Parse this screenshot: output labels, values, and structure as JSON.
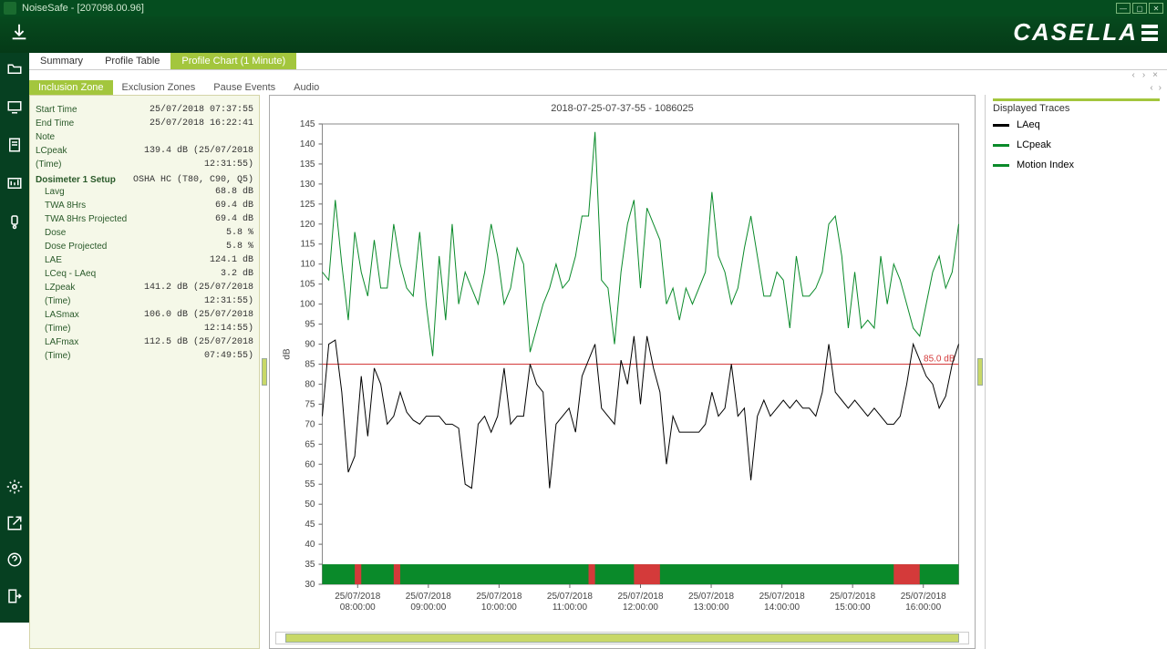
{
  "window": {
    "title": "NoiseSafe - [207098.00.96]"
  },
  "brand": "CASELLA",
  "tabs": [
    "Summary",
    "Profile Table",
    "Profile Chart (1 Minute)"
  ],
  "active_tab": 2,
  "subtabs": [
    "Inclusion Zone",
    "Exclusion Zones",
    "Pause Events",
    "Audio"
  ],
  "active_subtab": 0,
  "info": {
    "rows1": [
      {
        "k": "Start Time",
        "v": "25/07/2018 07:37:55"
      },
      {
        "k": "End Time",
        "v": "25/07/2018 16:22:41"
      },
      {
        "k": "Note",
        "v": ""
      },
      {
        "k": "LCpeak (Time)",
        "v": "139.4 dB (25/07/2018  12:31:55)"
      }
    ],
    "section": {
      "k": "Dosimeter 1 Setup",
      "v": "OSHA HC (T80, C90, Q5)"
    },
    "rows2": [
      {
        "k": "Lavg",
        "v": "68.8 dB"
      },
      {
        "k": "TWA 8Hrs",
        "v": "69.4 dB"
      },
      {
        "k": "TWA 8Hrs Projected",
        "v": "69.4 dB"
      },
      {
        "k": "Dose",
        "v": "5.8 %"
      },
      {
        "k": "Dose Projected",
        "v": "5.8 %"
      },
      {
        "k": "LAE",
        "v": "124.1 dB"
      },
      {
        "k": "LCeq - LAeq",
        "v": "3.2 dB"
      },
      {
        "k": "LZpeak (Time)",
        "v": "141.2 dB (25/07/2018  12:31:55)"
      },
      {
        "k": "LASmax (Time)",
        "v": "106.0 dB (25/07/2018  12:14:55)"
      },
      {
        "k": "LAFmax (Time)",
        "v": "112.5 dB (25/07/2018  07:49:55)"
      }
    ]
  },
  "chart": {
    "title": "2018-07-25-07-37-55 - 1086025",
    "y_label": "dB",
    "y_min": 30,
    "y_max": 145,
    "y_step": 5,
    "x_ticks": [
      {
        "date": "25/07/2018",
        "time": "08:00:00"
      },
      {
        "date": "25/07/2018",
        "time": "09:00:00"
      },
      {
        "date": "25/07/2018",
        "time": "10:00:00"
      },
      {
        "date": "25/07/2018",
        "time": "11:00:00"
      },
      {
        "date": "25/07/2018",
        "time": "12:00:00"
      },
      {
        "date": "25/07/2018",
        "time": "13:00:00"
      },
      {
        "date": "25/07/2018",
        "time": "14:00:00"
      },
      {
        "date": "25/07/2018",
        "time": "15:00:00"
      },
      {
        "date": "25/07/2018",
        "time": "16:00:00"
      }
    ],
    "ref_line": {
      "value": 85.0,
      "label": "85.0 dB",
      "color": "#d43a3a"
    },
    "colors": {
      "laeq": "#000000",
      "lcpeak": "#0a8a2a",
      "motion_green": "#0a8a2a",
      "motion_red": "#d43a3a",
      "grid": "#d8d8d8",
      "axis": "#666",
      "bg": "#ffffff"
    },
    "laeq": [
      72,
      90,
      91,
      78,
      58,
      62,
      82,
      67,
      84,
      80,
      70,
      72,
      78,
      73,
      71,
      70,
      72,
      72,
      72,
      70,
      70,
      69,
      55,
      54,
      70,
      72,
      68,
      72,
      84,
      70,
      72,
      72,
      85,
      80,
      78,
      54,
      70,
      72,
      74,
      68,
      82,
      86,
      90,
      74,
      72,
      70,
      86,
      80,
      92,
      75,
      92,
      84,
      78,
      60,
      72,
      68,
      68,
      68,
      68,
      70,
      78,
      72,
      74,
      85,
      72,
      74,
      56,
      72,
      76,
      72,
      74,
      76,
      74,
      76,
      74,
      74,
      72,
      78,
      90,
      78,
      76,
      74,
      76,
      74,
      72,
      74,
      72,
      70,
      70,
      72,
      80,
      90,
      86,
      82,
      80,
      74,
      77,
      85,
      90
    ],
    "lcpeak": [
      108,
      106,
      126,
      110,
      96,
      118,
      108,
      102,
      116,
      104,
      104,
      120,
      110,
      104,
      102,
      118,
      100,
      87,
      112,
      96,
      120,
      100,
      108,
      104,
      100,
      108,
      120,
      112,
      100,
      104,
      114,
      110,
      88,
      94,
      100,
      104,
      110,
      104,
      106,
      112,
      122,
      122,
      143,
      106,
      104,
      90,
      108,
      120,
      126,
      104,
      124,
      120,
      116,
      100,
      104,
      96,
      104,
      100,
      104,
      108,
      128,
      112,
      108,
      100,
      104,
      114,
      122,
      112,
      102,
      102,
      108,
      106,
      94,
      112,
      102,
      102,
      104,
      108,
      120,
      122,
      112,
      94,
      108,
      94,
      96,
      94,
      112,
      100,
      110,
      106,
      100,
      94,
      92,
      100,
      108,
      112,
      104,
      108,
      120
    ],
    "motion_red_spans": [
      [
        5,
        6
      ],
      [
        11,
        12
      ],
      [
        41,
        42
      ],
      [
        48,
        52
      ],
      [
        88,
        92
      ]
    ]
  },
  "traces_panel": {
    "heading": "Displayed Traces",
    "items": [
      {
        "label": "LAeq",
        "color": "#000000"
      },
      {
        "label": "LCpeak",
        "color": "#0a8a2a"
      },
      {
        "label": "Motion Index",
        "color": "#0a8a2a"
      }
    ]
  }
}
